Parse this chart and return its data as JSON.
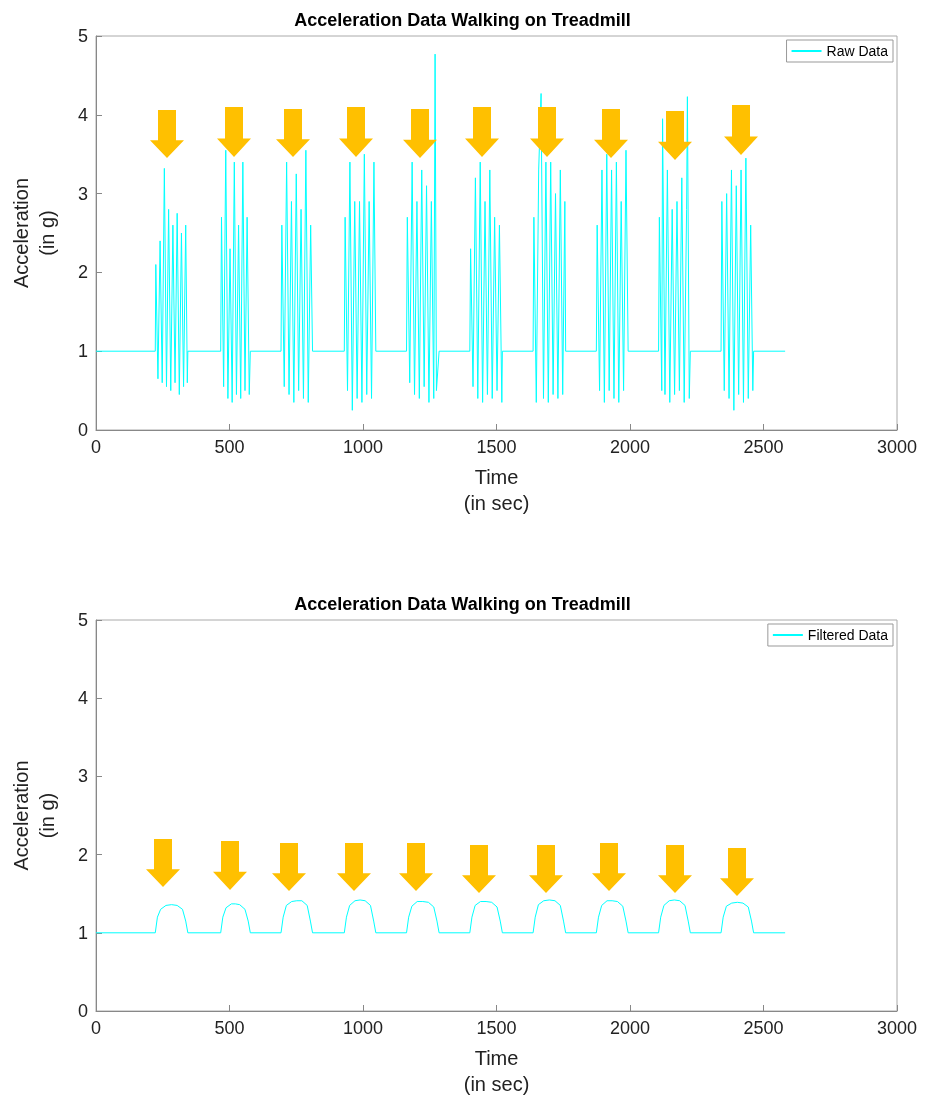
{
  "chart_data": [
    {
      "type": "line",
      "title": "Acceleration Data Walking on Treadmill",
      "xlabel": "Time\n(in sec)",
      "ylabel": "Acceleration\n(in g)",
      "legend": "top right",
      "xlim": [
        0,
        3000
      ],
      "ylim": [
        0,
        5
      ],
      "xticks": [
        0,
        500,
        1000,
        1500,
        2000,
        2500,
        3000
      ],
      "yticks": [
        0,
        1,
        2,
        3,
        4,
        5
      ],
      "x": [
        0,
        222,
        224,
        232,
        240,
        248,
        256,
        264,
        272,
        280,
        288,
        296,
        304,
        312,
        320,
        328,
        336,
        342,
        344,
        467,
        470,
        478,
        486,
        494,
        502,
        510,
        518,
        526,
        534,
        542,
        550,
        558,
        566,
        574,
        578,
        693,
        696,
        705,
        714,
        723,
        732,
        741,
        750,
        759,
        768,
        777,
        786,
        795,
        804,
        811,
        930,
        933,
        942,
        951,
        960,
        969,
        978,
        987,
        996,
        1005,
        1014,
        1023,
        1032,
        1041,
        1048,
        1163,
        1166,
        1175,
        1184,
        1193,
        1202,
        1211,
        1220,
        1229,
        1238,
        1247,
        1256,
        1265,
        1270,
        1275,
        1285,
        1400,
        1403,
        1412,
        1421,
        1430,
        1439,
        1448,
        1457,
        1466,
        1475,
        1484,
        1493,
        1502,
        1511,
        1520,
        1522,
        1637,
        1640,
        1649,
        1658,
        1667,
        1676,
        1685,
        1694,
        1703,
        1712,
        1721,
        1730,
        1739,
        1748,
        1756,
        1759,
        1874,
        1877,
        1886,
        1895,
        1904,
        1913,
        1922,
        1931,
        1940,
        1949,
        1958,
        1967,
        1976,
        1985,
        1993,
        2107,
        2110,
        2119,
        2122,
        2131,
        2140,
        2149,
        2158,
        2167,
        2176,
        2185,
        2194,
        2203,
        2212,
        2215,
        2222,
        2226,
        2341,
        2344,
        2353,
        2362,
        2371,
        2380,
        2389,
        2398,
        2407,
        2416,
        2425,
        2434,
        2443,
        2452,
        2460,
        2463,
        2581
      ],
      "series": [
        {
          "name": "Raw Data",
          "color": "#00ffff",
          "values": [
            1,
            1,
            2.1,
            0.65,
            2.4,
            0.6,
            3.32,
            0.55,
            2.8,
            0.5,
            2.6,
            0.6,
            2.75,
            0.45,
            2.5,
            0.55,
            2.6,
            0.6,
            1,
            1,
            2.7,
            0.55,
            3.55,
            0.4,
            2.3,
            0.35,
            3.4,
            0.45,
            2.6,
            0.4,
            3.4,
            0.5,
            2.7,
            0.45,
            1,
            1,
            2.6,
            0.55,
            3.4,
            0.45,
            2.9,
            0.35,
            3.25,
            0.5,
            2.8,
            0.4,
            3.55,
            0.35,
            2.6,
            1,
            1,
            2.7,
            0.5,
            3.4,
            0.25,
            2.9,
            0.4,
            2.9,
            0.35,
            3.5,
            0.45,
            2.9,
            0.4,
            3.4,
            1,
            1,
            2.7,
            0.6,
            3.4,
            0.45,
            2.9,
            0.4,
            3.3,
            0.55,
            3.1,
            0.35,
            2.9,
            0.4,
            4.77,
            0.5,
            1,
            1,
            2.3,
            0.55,
            3.2,
            0.4,
            3.4,
            0.35,
            2.9,
            0.45,
            3.3,
            0.4,
            2.7,
            0.5,
            2.6,
            0.35,
            1,
            1,
            2.7,
            0.35,
            3.3,
            4.27,
            0.4,
            3.4,
            0.35,
            3.4,
            0.45,
            3,
            0.4,
            3.3,
            0.45,
            2.9,
            1,
            1,
            2.6,
            0.5,
            3.3,
            0.35,
            3.5,
            0.5,
            3.3,
            0.4,
            3.4,
            0.35,
            2.9,
            0.5,
            3.55,
            1,
            1,
            2.7,
            0.5,
            3.95,
            0.45,
            3.3,
            0.35,
            2.8,
            0.45,
            2.9,
            0.5,
            3.2,
            0.35,
            2.8,
            4.23,
            0.4,
            1,
            1,
            2.9,
            0.5,
            3,
            0.4,
            3.3,
            0.25,
            3.1,
            0.45,
            3.3,
            0.35,
            3.45,
            0.4,
            2.6,
            0.5,
            1,
            1
          ]
        }
      ]
    },
    {
      "type": "line",
      "title": "Acceleration Data Walking on Treadmill",
      "xlabel": "Time\n(in sec)",
      "ylabel": "Acceleration\n(in g)",
      "legend": "top right",
      "xlim": [
        0,
        3000
      ],
      "ylim": [
        0,
        5
      ],
      "xticks": [
        0,
        500,
        1000,
        1500,
        2000,
        2500,
        3000
      ],
      "yticks": [
        0,
        1,
        2,
        3,
        4,
        5
      ],
      "x": [
        0,
        222,
        230,
        242,
        262,
        283,
        304,
        324,
        336,
        344,
        467,
        475,
        487,
        507,
        522,
        538,
        558,
        570,
        578,
        693,
        701,
        713,
        733,
        752,
        771,
        791,
        803,
        811,
        930,
        938,
        950,
        970,
        989,
        1008,
        1028,
        1040,
        1048,
        1163,
        1171,
        1183,
        1203,
        1224,
        1245,
        1265,
        1277,
        1285,
        1400,
        1408,
        1420,
        1440,
        1461,
        1482,
        1502,
        1514,
        1522,
        1637,
        1645,
        1657,
        1677,
        1698,
        1719,
        1739,
        1751,
        1759,
        1874,
        1882,
        1894,
        1914,
        1933,
        1953,
        1973,
        1985,
        1993,
        2107,
        2115,
        2127,
        2147,
        2166,
        2186,
        2206,
        2218,
        2226,
        2341,
        2349,
        2361,
        2381,
        2402,
        2423,
        2443,
        2455,
        2463,
        2581
      ],
      "series": [
        {
          "name": "Filtered Data",
          "color": "#00ffff",
          "values": [
            1,
            1,
            1.2,
            1.3,
            1.35,
            1.36,
            1.35,
            1.3,
            1.15,
            1,
            1,
            1.2,
            1.32,
            1.37,
            1.37,
            1.36,
            1.3,
            1.15,
            1,
            1,
            1.2,
            1.35,
            1.4,
            1.41,
            1.41,
            1.35,
            1.15,
            1,
            1,
            1.2,
            1.35,
            1.41,
            1.42,
            1.41,
            1.35,
            1.15,
            1,
            1,
            1.2,
            1.34,
            1.4,
            1.4,
            1.39,
            1.33,
            1.15,
            1,
            1,
            1.2,
            1.35,
            1.4,
            1.4,
            1.39,
            1.33,
            1.15,
            1,
            1,
            1.2,
            1.36,
            1.41,
            1.42,
            1.41,
            1.35,
            1.15,
            1,
            1,
            1.2,
            1.35,
            1.41,
            1.41,
            1.4,
            1.34,
            1.15,
            1,
            1,
            1.2,
            1.35,
            1.41,
            1.42,
            1.41,
            1.35,
            1.15,
            1,
            1,
            1.2,
            1.34,
            1.38,
            1.39,
            1.38,
            1.33,
            1.15,
            1,
            1
          ]
        }
      ]
    }
  ]
}
